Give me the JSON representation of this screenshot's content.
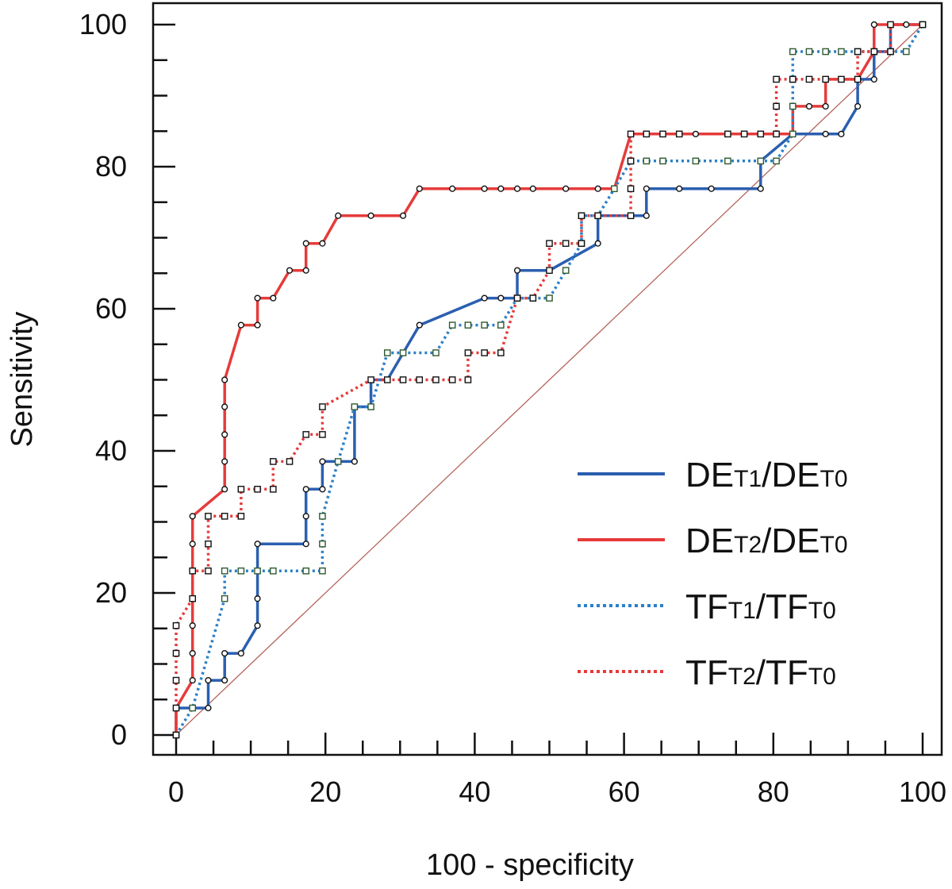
{
  "chart_data": {
    "type": "line",
    "title": "",
    "xlabel": "100 - specificity",
    "ylabel": "Sensitivity",
    "xlim": [
      0,
      100
    ],
    "ylim": [
      0,
      100
    ],
    "x_ticks": [
      0,
      20,
      40,
      60,
      80,
      100
    ],
    "y_ticks": [
      0,
      20,
      40,
      60,
      80,
      100
    ],
    "grid": false,
    "legend_position": "bottom-right",
    "reference_line": {
      "from": [
        0,
        0
      ],
      "to": [
        100,
        100
      ],
      "color": "#b5655c"
    },
    "series": [
      {
        "name": "DE<sub>T1</sub>/DE<sub>T0</sub>",
        "name_parts": [
          "DE",
          "T1",
          "/DE",
          "T0"
        ],
        "color": "#2b5fb0",
        "style": "solid",
        "marker": "circle",
        "points": [
          [
            0,
            0
          ],
          [
            0,
            3.8
          ],
          [
            2.2,
            3.8
          ],
          [
            4.3,
            3.8
          ],
          [
            4.3,
            7.7
          ],
          [
            6.5,
            7.7
          ],
          [
            6.5,
            11.5
          ],
          [
            8.7,
            11.5
          ],
          [
            10.9,
            15.4
          ],
          [
            10.9,
            19.2
          ],
          [
            10.9,
            23.1
          ],
          [
            10.9,
            26.9
          ],
          [
            17.4,
            26.9
          ],
          [
            17.4,
            30.8
          ],
          [
            17.4,
            34.6
          ],
          [
            19.6,
            34.6
          ],
          [
            19.6,
            38.5
          ],
          [
            23.9,
            38.5
          ],
          [
            23.9,
            46.2
          ],
          [
            26.1,
            46.2
          ],
          [
            26.1,
            50
          ],
          [
            28.3,
            50
          ],
          [
            32.6,
            57.7
          ],
          [
            41.3,
            61.5
          ],
          [
            43.5,
            61.5
          ],
          [
            45.7,
            61.5
          ],
          [
            45.7,
            65.4
          ],
          [
            50,
            65.4
          ],
          [
            56.5,
            69.2
          ],
          [
            56.5,
            73.1
          ],
          [
            60.9,
            73.1
          ],
          [
            63,
            73.1
          ],
          [
            63,
            76.9
          ],
          [
            67.4,
            76.9
          ],
          [
            71.7,
            76.9
          ],
          [
            78.3,
            76.9
          ],
          [
            78.3,
            80.8
          ],
          [
            82.6,
            84.6
          ],
          [
            87,
            84.6
          ],
          [
            89.1,
            84.6
          ],
          [
            91.3,
            88.5
          ],
          [
            91.3,
            92.3
          ],
          [
            93.5,
            92.3
          ],
          [
            93.5,
            96.2
          ],
          [
            95.7,
            96.2
          ],
          [
            95.7,
            100
          ],
          [
            100,
            100
          ]
        ]
      },
      {
        "name": "DE<sub>T2</sub>/DE<sub>T0</sub>",
        "name_parts": [
          "DE",
          "T2",
          "/DE",
          "T0"
        ],
        "color": "#e63b3b",
        "style": "solid",
        "marker": "circle",
        "points": [
          [
            0,
            0
          ],
          [
            0,
            3.8
          ],
          [
            2.2,
            7.7
          ],
          [
            2.2,
            11.5
          ],
          [
            2.2,
            15.4
          ],
          [
            2.2,
            19.2
          ],
          [
            2.2,
            23.1
          ],
          [
            2.2,
            26.9
          ],
          [
            2.2,
            30.8
          ],
          [
            6.5,
            34.6
          ],
          [
            6.5,
            38.5
          ],
          [
            6.5,
            42.3
          ],
          [
            6.5,
            46.2
          ],
          [
            6.5,
            50
          ],
          [
            8.7,
            57.7
          ],
          [
            10.9,
            57.7
          ],
          [
            10.9,
            61.5
          ],
          [
            13,
            61.5
          ],
          [
            15.2,
            65.4
          ],
          [
            17.4,
            65.4
          ],
          [
            17.4,
            69.2
          ],
          [
            19.6,
            69.2
          ],
          [
            21.7,
            73.1
          ],
          [
            26.1,
            73.1
          ],
          [
            30.4,
            73.1
          ],
          [
            32.6,
            76.9
          ],
          [
            37,
            76.9
          ],
          [
            41.3,
            76.9
          ],
          [
            43.5,
            76.9
          ],
          [
            45.7,
            76.9
          ],
          [
            47.8,
            76.9
          ],
          [
            52.2,
            76.9
          ],
          [
            56.5,
            76.9
          ],
          [
            58.7,
            76.9
          ],
          [
            60.9,
            84.6
          ],
          [
            63,
            84.6
          ],
          [
            65.2,
            84.6
          ],
          [
            69.6,
            84.6
          ],
          [
            76.1,
            84.6
          ],
          [
            78.3,
            84.6
          ],
          [
            80.4,
            84.6
          ],
          [
            82.6,
            84.6
          ],
          [
            82.6,
            88.5
          ],
          [
            84.8,
            88.5
          ],
          [
            87,
            88.5
          ],
          [
            87,
            92.3
          ],
          [
            89.1,
            92.3
          ],
          [
            91.3,
            92.3
          ],
          [
            93.5,
            96.2
          ],
          [
            93.5,
            100
          ],
          [
            95.7,
            100
          ],
          [
            97.8,
            100
          ],
          [
            100,
            100
          ]
        ]
      },
      {
        "name": "TF<sub>T1</sub>/TF<sub>T0</sub>",
        "name_parts": [
          "TF",
          "T1",
          "/TF",
          "T0"
        ],
        "color": "#2b80c8",
        "style": "dotted",
        "marker": "square",
        "points": [
          [
            0,
            0
          ],
          [
            2.2,
            3.8
          ],
          [
            6.5,
            19.2
          ],
          [
            6.5,
            23.1
          ],
          [
            8.7,
            23.1
          ],
          [
            10.9,
            23.1
          ],
          [
            13,
            23.1
          ],
          [
            17.4,
            23.1
          ],
          [
            19.6,
            23.1
          ],
          [
            19.6,
            26.9
          ],
          [
            19.6,
            30.8
          ],
          [
            21.7,
            38.5
          ],
          [
            23.9,
            46.2
          ],
          [
            26.1,
            46.2
          ],
          [
            28.3,
            53.8
          ],
          [
            30.4,
            53.8
          ],
          [
            34.8,
            53.8
          ],
          [
            37,
            57.7
          ],
          [
            39.1,
            57.7
          ],
          [
            41.3,
            57.7
          ],
          [
            43.5,
            57.7
          ],
          [
            45.7,
            61.5
          ],
          [
            47.8,
            61.5
          ],
          [
            50,
            61.5
          ],
          [
            52.2,
            65.4
          ],
          [
            54.3,
            69.2
          ],
          [
            54.3,
            73.1
          ],
          [
            56.5,
            73.1
          ],
          [
            58.7,
            76.9
          ],
          [
            60.9,
            80.8
          ],
          [
            63,
            80.8
          ],
          [
            65.2,
            80.8
          ],
          [
            69.6,
            80.8
          ],
          [
            73.9,
            80.8
          ],
          [
            78.3,
            80.8
          ],
          [
            80.4,
            80.8
          ],
          [
            82.6,
            84.6
          ],
          [
            82.6,
            88.5
          ],
          [
            82.6,
            92.3
          ],
          [
            82.6,
            96.2
          ],
          [
            84.8,
            96.2
          ],
          [
            87,
            96.2
          ],
          [
            89.1,
            96.2
          ],
          [
            91.3,
            96.2
          ],
          [
            93.5,
            96.2
          ],
          [
            95.7,
            96.2
          ],
          [
            97.8,
            96.2
          ],
          [
            100,
            100
          ]
        ]
      },
      {
        "name": "TF<sub>T2</sub>/TF<sub>T0</sub>",
        "name_parts": [
          "TF",
          "T2",
          "/TF",
          "T0"
        ],
        "color": "#e63b3b",
        "style": "dotted",
        "marker": "square",
        "points": [
          [
            0,
            0
          ],
          [
            0,
            3.8
          ],
          [
            0,
            7.7
          ],
          [
            0,
            11.5
          ],
          [
            0,
            15.4
          ],
          [
            2.2,
            19.2
          ],
          [
            2.2,
            23.1
          ],
          [
            4.3,
            23.1
          ],
          [
            4.3,
            26.9
          ],
          [
            4.3,
            30.8
          ],
          [
            6.5,
            30.8
          ],
          [
            8.7,
            30.8
          ],
          [
            8.7,
            34.6
          ],
          [
            10.9,
            34.6
          ],
          [
            13,
            34.6
          ],
          [
            13,
            38.5
          ],
          [
            15.2,
            38.5
          ],
          [
            17.4,
            42.3
          ],
          [
            19.6,
            42.3
          ],
          [
            19.6,
            46.2
          ],
          [
            26.1,
            50
          ],
          [
            28.3,
            50
          ],
          [
            30.4,
            50
          ],
          [
            32.6,
            50
          ],
          [
            34.8,
            50
          ],
          [
            37,
            50
          ],
          [
            39.1,
            50
          ],
          [
            39.1,
            53.8
          ],
          [
            41.3,
            53.8
          ],
          [
            43.5,
            53.8
          ],
          [
            45.7,
            61.5
          ],
          [
            47.8,
            61.5
          ],
          [
            50,
            65.4
          ],
          [
            50,
            69.2
          ],
          [
            52.2,
            69.2
          ],
          [
            54.3,
            69.2
          ],
          [
            54.3,
            73.1
          ],
          [
            56.5,
            73.1
          ],
          [
            60.9,
            73.1
          ],
          [
            60.9,
            76.9
          ],
          [
            60.9,
            80.8
          ],
          [
            60.9,
            84.6
          ],
          [
            63,
            84.6
          ],
          [
            65.2,
            84.6
          ],
          [
            67.4,
            84.6
          ],
          [
            73.9,
            84.6
          ],
          [
            76.1,
            84.6
          ],
          [
            78.3,
            84.6
          ],
          [
            80.4,
            84.6
          ],
          [
            80.4,
            88.5
          ],
          [
            80.4,
            92.3
          ],
          [
            82.6,
            92.3
          ],
          [
            84.8,
            92.3
          ],
          [
            87,
            92.3
          ],
          [
            89.1,
            92.3
          ],
          [
            91.3,
            92.3
          ],
          [
            91.3,
            96.2
          ],
          [
            93.5,
            96.2
          ],
          [
            95.7,
            96.2
          ],
          [
            95.7,
            100
          ],
          [
            100,
            100
          ]
        ]
      }
    ]
  }
}
